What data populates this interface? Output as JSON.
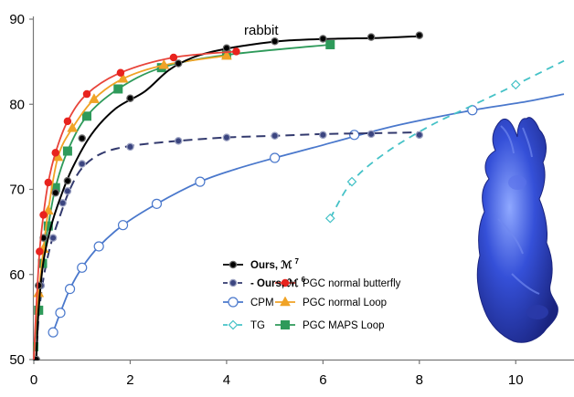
{
  "chart_data": {
    "type": "line",
    "annotation": "rabbit",
    "xlim": [
      0,
      11
    ],
    "ylim": [
      50,
      90
    ],
    "x_ticks": [
      "0",
      "2",
      "4",
      "6",
      "8",
      "10"
    ],
    "y_ticks": [
      "50",
      "60",
      "70",
      "80",
      "90"
    ],
    "series": [
      {
        "name": "Ours, ℳ",
        "name_sup": "7",
        "color": "#000000",
        "dash": "",
        "marker": "filled-circle",
        "marker_fill": "#000000",
        "marker_stroke": "#6a6a6a",
        "bold": true,
        "curve": [
          [
            0.05,
            50.0
          ],
          [
            0.1,
            56.0
          ],
          [
            0.2,
            61.5
          ],
          [
            0.35,
            65.5
          ],
          [
            0.55,
            69.0
          ],
          [
            0.8,
            72.5
          ],
          [
            1.2,
            76.5
          ],
          [
            1.7,
            79.5
          ],
          [
            2.3,
            81.5
          ],
          [
            2.8,
            84.0
          ],
          [
            3.3,
            85.5
          ],
          [
            3.8,
            86.3
          ],
          [
            4.5,
            87.0
          ],
          [
            5.3,
            87.5
          ],
          [
            6.3,
            87.7
          ],
          [
            7.2,
            87.8
          ],
          [
            8.0,
            88.0
          ]
        ],
        "points": [
          [
            0.05,
            50.0
          ],
          [
            0.1,
            58.7
          ],
          [
            0.2,
            64.3
          ],
          [
            0.45,
            69.6
          ],
          [
            0.7,
            71.0
          ],
          [
            1.0,
            76.0
          ],
          [
            2.0,
            80.7
          ],
          [
            3.0,
            84.8
          ],
          [
            4.0,
            86.6
          ],
          [
            5.0,
            87.4
          ],
          [
            6.0,
            87.7
          ],
          [
            7.0,
            87.9
          ],
          [
            8.0,
            88.1
          ]
        ]
      },
      {
        "name": "Ours, ℳ",
        "name_sup": "6",
        "color": "#333a6e",
        "dash": "10,6",
        "marker": "filled-circle",
        "marker_fill": "#3b4580",
        "marker_stroke": "#9aa0c0",
        "bold": true,
        "legend_prefix": "- ",
        "curve": [
          [
            0.05,
            50.0
          ],
          [
            0.1,
            55.0
          ],
          [
            0.2,
            59.5
          ],
          [
            0.35,
            63.5
          ],
          [
            0.55,
            67.0
          ],
          [
            0.75,
            70.0
          ],
          [
            1.0,
            72.5
          ],
          [
            1.4,
            74.2
          ],
          [
            2.0,
            75.1
          ],
          [
            3.0,
            75.7
          ],
          [
            4.0,
            76.1
          ],
          [
            5.0,
            76.3
          ],
          [
            6.0,
            76.5
          ],
          [
            7.0,
            76.6
          ],
          [
            8.0,
            76.7
          ]
        ],
        "points": [
          [
            0.05,
            50.0
          ],
          [
            0.15,
            58.7
          ],
          [
            0.4,
            64.3
          ],
          [
            0.6,
            68.4
          ],
          [
            0.7,
            69.8
          ],
          [
            1.0,
            73.0
          ],
          [
            2.0,
            75.0
          ],
          [
            3.0,
            75.7
          ],
          [
            4.0,
            76.1
          ],
          [
            5.0,
            76.3
          ],
          [
            6.0,
            76.4
          ],
          [
            7.0,
            76.5
          ],
          [
            8.0,
            76.4
          ]
        ]
      },
      {
        "name": "CPM",
        "color": "#4a78cc",
        "dash": "",
        "marker": "open-circle",
        "bold": false,
        "curve": [
          [
            0.4,
            53.2
          ],
          [
            0.55,
            55.5
          ],
          [
            0.75,
            58.3
          ],
          [
            1.0,
            60.8
          ],
          [
            1.35,
            63.3
          ],
          [
            1.85,
            65.8
          ],
          [
            2.55,
            68.3
          ],
          [
            3.45,
            70.9
          ],
          [
            4.2,
            72.4
          ],
          [
            5.0,
            73.7
          ],
          [
            5.8,
            74.9
          ],
          [
            6.7,
            76.3
          ],
          [
            7.6,
            77.6
          ],
          [
            9.1,
            79.3
          ],
          [
            10.2,
            80.3
          ],
          [
            11.0,
            81.2
          ]
        ],
        "points": [
          [
            0.4,
            53.2
          ],
          [
            0.55,
            55.5
          ],
          [
            0.75,
            58.3
          ],
          [
            1.0,
            60.8
          ],
          [
            1.35,
            63.3
          ],
          [
            1.85,
            65.8
          ],
          [
            2.55,
            68.3
          ],
          [
            3.45,
            70.9
          ],
          [
            5.0,
            73.7
          ],
          [
            6.65,
            76.4
          ],
          [
            9.1,
            79.3
          ]
        ]
      },
      {
        "name": "TG",
        "color": "#45c2c7",
        "dash": "8,6",
        "marker": "open-diamond",
        "bold": false,
        "curve": [
          [
            6.15,
            66.6
          ],
          [
            6.6,
            70.9
          ],
          [
            7.3,
            74.3
          ],
          [
            8.2,
            77.4
          ],
          [
            9.0,
            79.6
          ],
          [
            10.0,
            82.3
          ],
          [
            11.0,
            85.1
          ]
        ],
        "points": [
          [
            6.15,
            66.6
          ],
          [
            6.6,
            70.9
          ],
          [
            10.0,
            82.3
          ]
        ]
      },
      {
        "name": "PGC normal butterfly",
        "color": "#e8443a",
        "dash": "",
        "marker": "filled-circle",
        "marker_fill": "#e8231e",
        "marker_stroke": "#e8231e",
        "bold": false,
        "curve": [
          [
            0.0,
            50.0
          ],
          [
            0.05,
            56.0
          ],
          [
            0.12,
            62.7
          ],
          [
            0.2,
            67.0
          ],
          [
            0.3,
            70.8
          ],
          [
            0.45,
            74.3
          ],
          [
            0.7,
            78.0
          ],
          [
            1.1,
            81.2
          ],
          [
            1.8,
            83.7
          ],
          [
            2.9,
            85.5
          ],
          [
            4.2,
            86.2
          ]
        ],
        "points": [
          [
            0.12,
            62.7
          ],
          [
            0.2,
            67.0
          ],
          [
            0.3,
            70.8
          ],
          [
            0.45,
            74.3
          ],
          [
            0.7,
            78.0
          ],
          [
            1.1,
            81.2
          ],
          [
            1.8,
            83.7
          ],
          [
            2.9,
            85.5
          ],
          [
            4.2,
            86.2
          ]
        ]
      },
      {
        "name": "PGC normal Loop",
        "color": "#f0a326",
        "dash": "",
        "marker": "triangle",
        "marker_fill": "#f0a326",
        "bold": false,
        "curve": [
          [
            0.0,
            50.0
          ],
          [
            0.05,
            55.0
          ],
          [
            0.1,
            57.8
          ],
          [
            0.2,
            63.0
          ],
          [
            0.3,
            67.5
          ],
          [
            0.5,
            73.8
          ],
          [
            0.8,
            77.2
          ],
          [
            1.25,
            80.6
          ],
          [
            1.85,
            83.0
          ],
          [
            2.7,
            84.6
          ],
          [
            4.0,
            85.7
          ]
        ],
        "points": [
          [
            0.1,
            57.8
          ],
          [
            0.2,
            63.0
          ],
          [
            0.3,
            67.5
          ],
          [
            0.5,
            73.8
          ],
          [
            0.8,
            77.2
          ],
          [
            1.25,
            80.6
          ],
          [
            1.85,
            83.0
          ],
          [
            2.7,
            84.6
          ],
          [
            4.0,
            85.7
          ]
        ]
      },
      {
        "name": "PGC MAPS Loop",
        "color": "#2e9a5a",
        "dash": "",
        "marker": "square",
        "marker_fill": "#2e9a5a",
        "bold": false,
        "curve": [
          [
            0.0,
            51.5
          ],
          [
            0.1,
            55.8
          ],
          [
            0.18,
            61.3
          ],
          [
            0.3,
            65.7
          ],
          [
            0.45,
            70.2
          ],
          [
            0.7,
            74.5
          ],
          [
            1.1,
            78.6
          ],
          [
            1.75,
            81.8
          ],
          [
            2.65,
            84.3
          ],
          [
            4.0,
            85.8
          ],
          [
            6.15,
            87.0
          ]
        ],
        "points": [
          [
            0.0,
            51.5
          ],
          [
            0.1,
            55.8
          ],
          [
            0.18,
            61.3
          ],
          [
            0.3,
            65.7
          ],
          [
            0.45,
            70.2
          ],
          [
            0.7,
            74.5
          ],
          [
            1.1,
            78.6
          ],
          [
            1.75,
            81.8
          ],
          [
            2.65,
            84.3
          ],
          [
            4.0,
            85.8
          ],
          [
            6.15,
            87.0
          ]
        ]
      }
    ],
    "legend_order": [
      0,
      4,
      1,
      5,
      2,
      6,
      3
    ],
    "image": "blue-rabbit-model"
  }
}
